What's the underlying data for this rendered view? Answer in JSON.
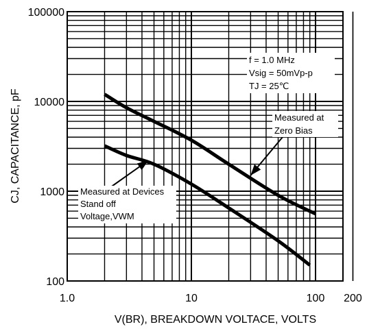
{
  "chart_data": {
    "type": "line",
    "title": "",
    "xlabel": "V(BR), BREAKDOWN VOLTACE, VOLTS",
    "ylabel": "CJ, CAPACITANCE, pF",
    "xscale": "log",
    "yscale": "log",
    "xlim": [
      1,
      200
    ],
    "ylim": [
      100,
      100000
    ],
    "grid": true,
    "x_tick_labels": [
      {
        "value": 1,
        "label": "1.0"
      },
      {
        "value": 10,
        "label": "10"
      },
      {
        "value": 100,
        "label": "100"
      },
      {
        "value": 200,
        "label": "200"
      }
    ],
    "y_tick_labels": [
      {
        "value": 100,
        "label": "100"
      },
      {
        "value": 1000,
        "label": "1000"
      },
      {
        "value": 10000,
        "label": "10000"
      },
      {
        "value": 100000,
        "label": "100000"
      }
    ],
    "series": [
      {
        "x": [
          2,
          3,
          5,
          10,
          20,
          50,
          100
        ],
        "y": [
          12000,
          8500,
          6000,
          3700,
          2000,
          900,
          560
        ]
      },
      {
        "x": [
          2,
          3,
          5,
          10,
          20,
          50,
          90
        ],
        "y": [
          3200,
          2500,
          2000,
          1200,
          650,
          280,
          150
        ]
      }
    ],
    "annotations": [
      {
        "lines": [
          "f = 1.0 MHz",
          "Vsig = 50mVp-p",
          "TJ = 25℃"
        ]
      },
      {
        "lines": [
          "Measured at",
          "Zero Bias"
        ],
        "points_to": {
          "x": 30,
          "y": 1500
        }
      },
      {
        "lines": [
          "Measured at Devices",
          "Stand off",
          "Voltage,VWM"
        ],
        "points_to": {
          "x": 4.5,
          "y": 2200
        }
      }
    ]
  }
}
